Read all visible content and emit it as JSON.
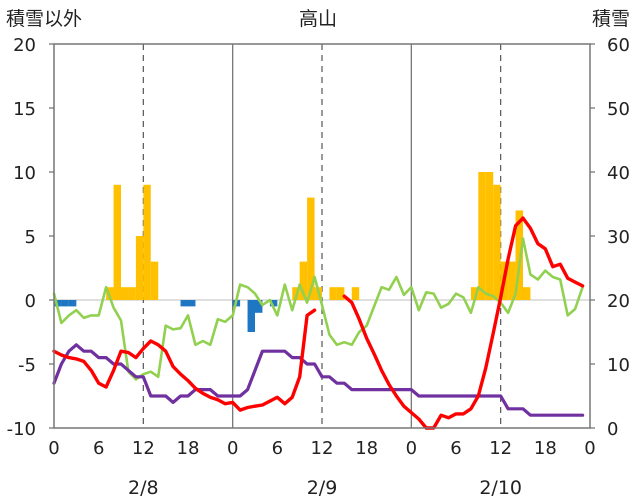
{
  "chart_data": {
    "type": "bar+line",
    "title": "高山",
    "left_axis_label": "積雪以外",
    "right_axis_label": "積雪",
    "left_ylim": [
      -10,
      20
    ],
    "left_yticks": [
      "20",
      "15",
      "10",
      "5",
      "0",
      "-5",
      "-10"
    ],
    "right_ylim": [
      0,
      60
    ],
    "right_yticks": [
      "60",
      "50",
      "40",
      "30",
      "20",
      "10",
      "0"
    ],
    "x_tick_labels": [
      "0",
      "6",
      "12",
      "18",
      "0",
      "6",
      "12",
      "18",
      "0",
      "6",
      "12",
      "18",
      "0"
    ],
    "date_labels": [
      "2/8",
      "2/9",
      "2/10"
    ],
    "x_range_hours": [
      0,
      72
    ],
    "grid": "dashed vertical lines at 12h, solid day separators",
    "colors": {
      "snowfall": "#FFC000",
      "precip": "#1F77C4",
      "temperature": "#FF0000",
      "humidity": "#92D050",
      "snow_depth": "#7030A0"
    },
    "series": [
      {
        "id": "snowfall_bars",
        "axis": "left",
        "bars": [
          {
            "x": 7.5,
            "v": 1
          },
          {
            "x": 8.5,
            "v": 9
          },
          {
            "x": 9.5,
            "v": 1
          },
          {
            "x": 10.5,
            "v": 1
          },
          {
            "x": 11.5,
            "v": 5
          },
          {
            "x": 12.5,
            "v": 9
          },
          {
            "x": 13.5,
            "v": 3
          },
          {
            "x": 32.5,
            "v": 1
          },
          {
            "x": 33.5,
            "v": 3
          },
          {
            "x": 34.5,
            "v": 8
          },
          {
            "x": 35.5,
            "v": 1
          },
          {
            "x": 37.5,
            "v": 1
          },
          {
            "x": 38.5,
            "v": 1
          },
          {
            "x": 40.5,
            "v": 1
          },
          {
            "x": 56.5,
            "v": 1
          },
          {
            "x": 57.5,
            "v": 10
          },
          {
            "x": 58.5,
            "v": 10
          },
          {
            "x": 59.5,
            "v": 9
          },
          {
            "x": 60.5,
            "v": 3
          },
          {
            "x": 61.5,
            "v": 3
          },
          {
            "x": 62.5,
            "v": 7
          },
          {
            "x": 63.5,
            "v": 1
          }
        ]
      },
      {
        "id": "precip_bars",
        "axis": "left",
        "bars": [
          {
            "x": 0.5,
            "v": -0.5
          },
          {
            "x": 1.5,
            "v": -0.5
          },
          {
            "x": 2.5,
            "v": -0.5
          },
          {
            "x": 17.5,
            "v": -0.5
          },
          {
            "x": 18.5,
            "v": -0.5
          },
          {
            "x": 24.5,
            "v": -0.5
          },
          {
            "x": 26.5,
            "v": -2.5
          },
          {
            "x": 27.5,
            "v": -1
          },
          {
            "x": 29.5,
            "v": -0.5
          }
        ]
      },
      {
        "id": "temperature_line",
        "axis": "left",
        "segments": [
          [
            [
              0,
              -4
            ],
            [
              1,
              -4.3
            ],
            [
              2,
              -4.5
            ],
            [
              3,
              -4.6
            ],
            [
              4,
              -4.8
            ],
            [
              5,
              -5.5
            ],
            [
              6,
              -6.5
            ],
            [
              7,
              -6.8
            ],
            [
              8,
              -5.5
            ],
            [
              9,
              -4
            ],
            [
              10,
              -4.1
            ],
            [
              11,
              -4.5
            ],
            [
              12,
              -3.8
            ],
            [
              13,
              -3.2
            ],
            [
              14,
              -3.5
            ],
            [
              15,
              -4
            ],
            [
              16,
              -5.2
            ],
            [
              17,
              -5.8
            ],
            [
              18,
              -6.3
            ],
            [
              19,
              -6.9
            ],
            [
              20,
              -7.3
            ],
            [
              21,
              -7.6
            ],
            [
              22,
              -7.8
            ],
            [
              23,
              -8.1
            ],
            [
              24,
              -8
            ],
            [
              25,
              -8.6
            ],
            [
              26,
              -8.4
            ],
            [
              27,
              -8.3
            ],
            [
              28,
              -8.2
            ],
            [
              29,
              -7.9
            ],
            [
              30,
              -7.6
            ],
            [
              31,
              -8.1
            ],
            [
              32,
              -7.6
            ],
            [
              33,
              -6
            ],
            [
              34,
              -1.2
            ],
            [
              35,
              -0.8
            ]
          ],
          [
            [
              39,
              0.3
            ],
            [
              40,
              -0.2
            ],
            [
              41,
              -1.5
            ],
            [
              42,
              -3
            ],
            [
              43,
              -4.2
            ],
            [
              44,
              -5.5
            ],
            [
              45,
              -6.6
            ],
            [
              46,
              -7.5
            ],
            [
              47,
              -8.3
            ],
            [
              48,
              -8.8
            ],
            [
              49,
              -9.3
            ],
            [
              50,
              -10
            ],
            [
              51,
              -10
            ],
            [
              52,
              -9
            ],
            [
              53,
              -9.2
            ],
            [
              54,
              -8.9
            ],
            [
              55,
              -8.9
            ],
            [
              56,
              -8.5
            ],
            [
              57,
              -7.5
            ],
            [
              58,
              -5.3
            ],
            [
              59,
              -2.6
            ],
            [
              60,
              0.2
            ],
            [
              61,
              3.2
            ],
            [
              62,
              5.8
            ],
            [
              63,
              6.4
            ],
            [
              64,
              5.6
            ],
            [
              65,
              4.4
            ],
            [
              66,
              4
            ],
            [
              67,
              2.6
            ],
            [
              68,
              2.8
            ],
            [
              69,
              1.7
            ],
            [
              70,
              1.4
            ],
            [
              71,
              1.1
            ]
          ]
        ]
      },
      {
        "id": "humidity_line",
        "axis": "left",
        "segments": [
          [
            [
              0,
              0.5
            ],
            [
              1,
              -1.8
            ],
            [
              2,
              -1.2
            ],
            [
              3,
              -0.8
            ],
            [
              4,
              -1.4
            ],
            [
              5,
              -1.2
            ],
            [
              6,
              -1.2
            ],
            [
              7,
              1
            ],
            [
              8,
              -0.6
            ],
            [
              9,
              -1.6
            ],
            [
              10,
              -5.6
            ],
            [
              11,
              -6.2
            ],
            [
              12,
              -5.8
            ],
            [
              13,
              -5.6
            ],
            [
              14,
              -6
            ],
            [
              15,
              -2
            ],
            [
              16,
              -2.3
            ],
            [
              17,
              -2.2
            ],
            [
              18,
              -1.2
            ],
            [
              19,
              -3.5
            ],
            [
              20,
              -3.2
            ],
            [
              21,
              -3.5
            ],
            [
              22,
              -1.5
            ],
            [
              23,
              -1.7
            ],
            [
              24,
              -1.2
            ],
            [
              25,
              1.2
            ],
            [
              26,
              1
            ],
            [
              27,
              0.5
            ],
            [
              28,
              -0.4
            ],
            [
              29,
              0
            ],
            [
              30,
              -1.2
            ],
            [
              31,
              1.2
            ],
            [
              32,
              -0.8
            ],
            [
              33,
              1.2
            ],
            [
              34,
              -0.2
            ],
            [
              35,
              1.8
            ],
            [
              36,
              -0.4
            ],
            [
              37,
              -2.7
            ],
            [
              38,
              -3.5
            ],
            [
              39,
              -3.3
            ],
            [
              40,
              -3.5
            ],
            [
              41,
              -2.5
            ],
            [
              42,
              -2
            ],
            [
              43,
              -0.5
            ],
            [
              44,
              1
            ],
            [
              45,
              0.8
            ],
            [
              46,
              1.8
            ],
            [
              47,
              0.4
            ],
            [
              48,
              1
            ],
            [
              49,
              -0.8
            ],
            [
              50,
              0.6
            ],
            [
              51,
              0.5
            ],
            [
              52,
              -0.6
            ],
            [
              53,
              -0.3
            ],
            [
              54,
              0.5
            ],
            [
              55,
              0.2
            ],
            [
              56,
              -1
            ],
            [
              57,
              1
            ],
            [
              58,
              0.5
            ],
            [
              59,
              0.3
            ],
            [
              60,
              -0.2
            ],
            [
              61,
              -1
            ],
            [
              62,
              0.5
            ],
            [
              63,
              4.8
            ],
            [
              64,
              2
            ],
            [
              65,
              1.6
            ],
            [
              66,
              2.3
            ],
            [
              67,
              1.8
            ],
            [
              68,
              1.6
            ],
            [
              69,
              -1.2
            ],
            [
              70,
              -0.7
            ],
            [
              71,
              1
            ]
          ]
        ]
      },
      {
        "id": "snow_depth_line",
        "axis": "right",
        "segments": [
          [
            [
              0,
              7
            ],
            [
              1,
              10
            ],
            [
              2,
              12
            ],
            [
              3,
              13
            ],
            [
              4,
              12
            ],
            [
              5,
              12
            ],
            [
              6,
              11
            ],
            [
              7,
              11
            ],
            [
              8,
              10
            ],
            [
              9,
              10
            ],
            [
              10,
              9
            ],
            [
              11,
              8
            ],
            [
              12,
              8
            ],
            [
              13,
              5
            ],
            [
              14,
              5
            ],
            [
              15,
              5
            ],
            [
              16,
              4
            ],
            [
              17,
              5
            ],
            [
              18,
              5
            ],
            [
              19,
              6
            ],
            [
              20,
              6
            ],
            [
              21,
              6
            ],
            [
              22,
              5
            ],
            [
              23,
              5
            ],
            [
              24,
              5
            ],
            [
              25,
              5
            ],
            [
              26,
              6
            ],
            [
              27,
              9
            ],
            [
              28,
              12
            ],
            [
              29,
              12
            ],
            [
              30,
              12
            ],
            [
              31,
              12
            ],
            [
              32,
              11
            ],
            [
              33,
              11
            ],
            [
              34,
              10
            ],
            [
              35,
              10
            ],
            [
              36,
              8
            ],
            [
              37,
              8
            ],
            [
              38,
              7
            ],
            [
              39,
              7
            ],
            [
              40,
              6
            ],
            [
              41,
              6
            ],
            [
              42,
              6
            ],
            [
              43,
              6
            ],
            [
              44,
              6
            ],
            [
              45,
              6
            ],
            [
              46,
              6
            ],
            [
              47,
              6
            ],
            [
              48,
              6
            ],
            [
              49,
              5
            ],
            [
              50,
              5
            ],
            [
              51,
              5
            ],
            [
              52,
              5
            ],
            [
              53,
              5
            ],
            [
              54,
              5
            ],
            [
              55,
              5
            ],
            [
              56,
              5
            ],
            [
              57,
              5
            ],
            [
              58,
              5
            ],
            [
              59,
              5
            ],
            [
              60,
              5
            ],
            [
              61,
              3
            ],
            [
              62,
              3
            ],
            [
              63,
              3
            ],
            [
              64,
              2
            ],
            [
              65,
              2
            ],
            [
              66,
              2
            ],
            [
              67,
              2
            ],
            [
              68,
              2
            ],
            [
              69,
              2
            ],
            [
              70,
              2
            ],
            [
              71,
              2
            ]
          ]
        ]
      }
    ]
  }
}
